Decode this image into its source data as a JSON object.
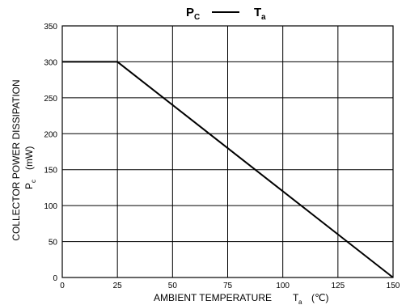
{
  "chart_data": {
    "type": "line",
    "title": {
      "left": "P",
      "left_sub": "C",
      "connector": "——",
      "right": "T",
      "right_sub": "a"
    },
    "xlabel": {
      "text": "AMBIENT TEMPERATURE",
      "symbol": "T",
      "symbol_sub": "a",
      "unit": "(℃)"
    },
    "ylabel": {
      "line1": "COLLECTOR POWER DISSIPATION",
      "symbol": "P",
      "symbol_sub": "c",
      "unit": "(mW)"
    },
    "xlim": [
      0,
      150
    ],
    "ylim": [
      0,
      350
    ],
    "x_ticks": [
      0,
      25,
      50,
      75,
      100,
      125,
      150
    ],
    "y_ticks": [
      0,
      50,
      100,
      150,
      200,
      250,
      300,
      350
    ],
    "grid": true,
    "series": [
      {
        "x": [
          0,
          25,
          150
        ],
        "y": [
          300,
          300,
          0
        ]
      }
    ]
  },
  "colors": {
    "grid": "#000000",
    "line": "#000000",
    "background": "#ffffff"
  }
}
